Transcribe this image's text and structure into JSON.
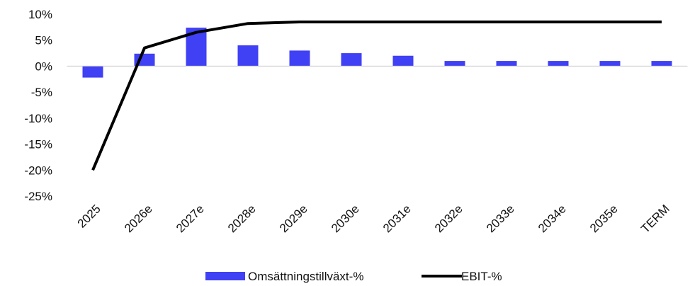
{
  "chart_data": {
    "type": "bar+line",
    "categories": [
      "2025",
      "2026e",
      "2027e",
      "2028e",
      "2029e",
      "2030e",
      "2031e",
      "2032e",
      "2033e",
      "2034e",
      "2035e",
      "TERM"
    ],
    "series": [
      {
        "name": "Omsättningstillväxt-%",
        "type": "bar",
        "color": "#4040f5",
        "values": [
          -2.2,
          2.4,
          7.4,
          4.0,
          3.0,
          2.5,
          2.0,
          1.0,
          1.0,
          1.0,
          1.0,
          1.0
        ]
      },
      {
        "name": "EBIT-%",
        "type": "line",
        "color": "#000000",
        "values": [
          -20.0,
          3.5,
          6.5,
          8.2,
          8.5,
          8.5,
          8.5,
          8.5,
          8.5,
          8.5,
          8.5,
          8.5
        ]
      }
    ],
    "y_ticks": [
      "10%",
      "5%",
      "0%",
      "-5%",
      "-10%",
      "-15%",
      "-20%",
      "-25%"
    ],
    "ylim": [
      -25,
      10
    ],
    "grid": false,
    "legend_position": "bottom"
  }
}
